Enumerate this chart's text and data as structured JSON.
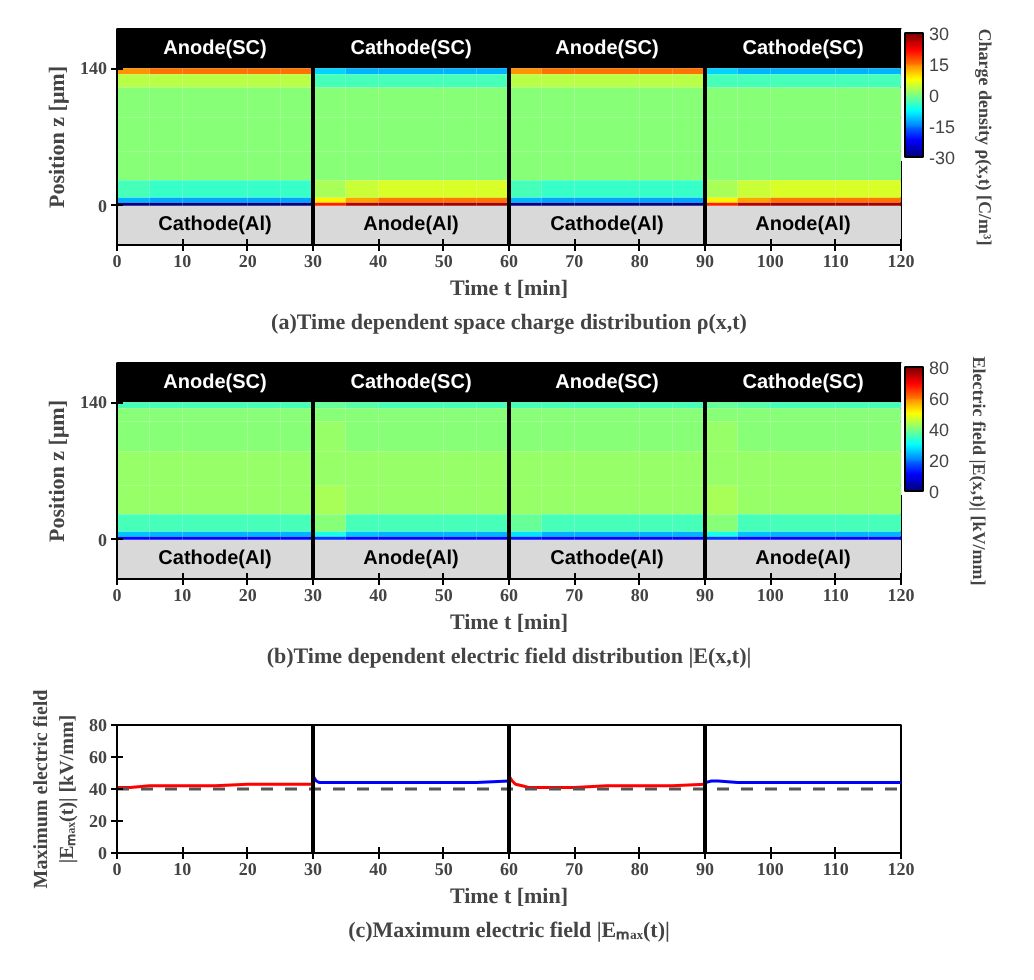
{
  "chart_data": [
    {
      "type": "heatmap",
      "title": "(a)Time dependent space charge distribution ρ(x,t)",
      "xlabel": "Time t [min]",
      "ylabel": "Position z [μm]",
      "clabel": "Charge density ρ(x,t) [C/m³]",
      "x": [
        2.5,
        7.5,
        12.5,
        17.5,
        22.5,
        27.5,
        32.5,
        37.5,
        42.5,
        47.5,
        52.5,
        57.5,
        62.5,
        67.5,
        72.5,
        77.5,
        82.5,
        87.5,
        92.5,
        97.5,
        102.5,
        107.5,
        112.5,
        117.5
      ],
      "y": [
        137,
        131,
        110,
        70,
        40,
        12,
        4.5,
        1.5
      ],
      "cells": [
        [
          14,
          15,
          15,
          15,
          15,
          15,
          -10,
          -12,
          -12,
          -12,
          -12,
          -12,
          14,
          15,
          15,
          15,
          15,
          15,
          -10,
          -12,
          -12,
          -12,
          -12,
          -12
        ],
        [
          3,
          3,
          3,
          3,
          3,
          3,
          -3,
          -3,
          -3,
          -3,
          -3,
          -3,
          3,
          3,
          3,
          3,
          3,
          3,
          -3,
          -3,
          -3,
          -3,
          -3,
          -3
        ],
        [
          0,
          0,
          0,
          0,
          0,
          0,
          0,
          0,
          0,
          0,
          0,
          0,
          0,
          0,
          0,
          0,
          0,
          0,
          0,
          0,
          0,
          0,
          0,
          0
        ],
        [
          0,
          0,
          0,
          0,
          0,
          0,
          0,
          0,
          0,
          0,
          0,
          0,
          0,
          0,
          0,
          0,
          0,
          0,
          0,
          0,
          0,
          0,
          0,
          0
        ],
        [
          0,
          0,
          0,
          0,
          0,
          0,
          0,
          0,
          0,
          0,
          0,
          0,
          0,
          0,
          0,
          0,
          0,
          0,
          0,
          0,
          0,
          0,
          0,
          0
        ],
        [
          -3,
          -4,
          -4,
          -4,
          -4,
          -4,
          2,
          4,
          5,
          5,
          5,
          5,
          -3,
          -4,
          -4,
          -4,
          -4,
          -4,
          2,
          4,
          5,
          5,
          5,
          5
        ],
        [
          -12,
          -13,
          -13,
          -13,
          -13,
          -13,
          8,
          13,
          15,
          15,
          15,
          15,
          -12,
          -13,
          -13,
          -13,
          -13,
          -13,
          8,
          13,
          15,
          15,
          15,
          15
        ],
        [
          -30,
          -30,
          -30,
          -30,
          -30,
          -30,
          20,
          27,
          28,
          28,
          28,
          28,
          -30,
          -30,
          -30,
          -30,
          -30,
          -30,
          20,
          27,
          28,
          28,
          28,
          28
        ]
      ],
      "clim": [
        -30,
        30
      ],
      "cticks": [
        -30,
        -15,
        0,
        15,
        30
      ],
      "xlim": [
        0,
        120
      ],
      "xticks": [
        0,
        10,
        20,
        30,
        40,
        50,
        60,
        70,
        80,
        90,
        100,
        110,
        120
      ],
      "ylim": [
        -40,
        180
      ],
      "yticks": [
        0,
        140
      ],
      "bands": [
        {
          "axis": "y",
          "from": 140,
          "to": 180,
          "label": null,
          "color": "#000000"
        },
        {
          "axis": "y",
          "from": -40,
          "to": 0,
          "label": null,
          "color": "#d9d9d9"
        }
      ],
      "ref_lines": [
        {
          "axis": "x",
          "value": 30,
          "label": null,
          "color": "#000000"
        },
        {
          "axis": "x",
          "value": 60,
          "label": null,
          "color": "#000000"
        },
        {
          "axis": "x",
          "value": 90,
          "label": null,
          "color": "#000000"
        }
      ],
      "annotations": [
        "Anode(SC)",
        "Cathode(SC)",
        "Anode(SC)",
        "Cathode(SC)",
        "Cathode(Al)",
        "Anode(Al)",
        "Cathode(Al)",
        "Anode(Al)"
      ]
    },
    {
      "type": "heatmap",
      "title": "(b)Time dependent electric field distribution |E(x,t)|",
      "xlabel": "Time t [min]",
      "ylabel": "Position z [μm]",
      "clabel": "Electric field |E(x,t)| [kV/mm]",
      "x": [
        2.5,
        7.5,
        12.5,
        17.5,
        22.5,
        27.5,
        32.5,
        37.5,
        42.5,
        47.5,
        52.5,
        57.5,
        62.5,
        67.5,
        72.5,
        77.5,
        82.5,
        87.5,
        92.5,
        97.5,
        102.5,
        107.5,
        112.5,
        117.5
      ],
      "y": [
        137,
        131,
        110,
        70,
        40,
        12,
        4.5,
        1.5
      ],
      "cells": [
        [
          36,
          36,
          36,
          36,
          36,
          36,
          38,
          37,
          36,
          36,
          36,
          36,
          36,
          36,
          36,
          36,
          36,
          36,
          38,
          37,
          36,
          36,
          36,
          36
        ],
        [
          40,
          40,
          40,
          40,
          40,
          40,
          41,
          40,
          40,
          40,
          40,
          40,
          40,
          40,
          40,
          40,
          40,
          40,
          41,
          40,
          40,
          40,
          40,
          40
        ],
        [
          41,
          41,
          41,
          41,
          41,
          41,
          42,
          41,
          41,
          41,
          41,
          41,
          41,
          41,
          41,
          41,
          41,
          41,
          42,
          41,
          41,
          41,
          41,
          41
        ],
        [
          42,
          42,
          42,
          42,
          42,
          42,
          42,
          42,
          42,
          42,
          42,
          42,
          42,
          42,
          42,
          42,
          42,
          42,
          42,
          42,
          42,
          42,
          42,
          42
        ],
        [
          42,
          42,
          42,
          42,
          42,
          42,
          43,
          42,
          42,
          42,
          42,
          42,
          42,
          42,
          42,
          42,
          42,
          42,
          43,
          42,
          42,
          42,
          42,
          42
        ],
        [
          36,
          35,
          35,
          35,
          35,
          35,
          40,
          36,
          35,
          35,
          35,
          35,
          38,
          35,
          35,
          35,
          35,
          35,
          40,
          36,
          35,
          35,
          35,
          35
        ],
        [
          25,
          24,
          24,
          24,
          24,
          24,
          32,
          26,
          24,
          24,
          24,
          24,
          28,
          24,
          24,
          24,
          24,
          24,
          32,
          26,
          24,
          24,
          24,
          24
        ],
        [
          10,
          10,
          10,
          10,
          10,
          10,
          14,
          11,
          10,
          10,
          10,
          10,
          12,
          10,
          10,
          10,
          10,
          10,
          14,
          11,
          10,
          10,
          10,
          10
        ]
      ],
      "clim": [
        0,
        80
      ],
      "cticks": [
        0,
        20,
        40,
        60,
        80
      ],
      "xlim": [
        0,
        120
      ],
      "xticks": [
        0,
        10,
        20,
        30,
        40,
        50,
        60,
        70,
        80,
        90,
        100,
        110,
        120
      ],
      "ylim": [
        -40,
        180
      ],
      "yticks": [
        0,
        140
      ],
      "bands": [
        {
          "axis": "y",
          "from": 140,
          "to": 180,
          "label": null,
          "color": "#000000"
        },
        {
          "axis": "y",
          "from": -40,
          "to": 0,
          "label": null,
          "color": "#d9d9d9"
        }
      ],
      "ref_lines": [
        {
          "axis": "x",
          "value": 30,
          "label": null,
          "color": "#000000"
        },
        {
          "axis": "x",
          "value": 60,
          "label": null,
          "color": "#000000"
        },
        {
          "axis": "x",
          "value": 90,
          "label": null,
          "color": "#000000"
        }
      ],
      "annotations": [
        "Anode(SC)",
        "Cathode(SC)",
        "Anode(SC)",
        "Cathode(SC)",
        "Cathode(Al)",
        "Anode(Al)",
        "Cathode(Al)",
        "Anode(Al)"
      ]
    },
    {
      "type": "line",
      "title": "(c)Maximum electric field |Eₘₐₓ(t)|",
      "xlabel": "Time t [min]",
      "ylabel": "Maximum electric field\n|Eₘₐₓ(t)| [kV/mm]",
      "series": [
        {
          "color": "#ff0000",
          "x": [
            0,
            2,
            5,
            10,
            15,
            20,
            25,
            30
          ],
          "values": [
            41,
            41,
            42,
            42,
            42,
            43,
            43,
            43
          ]
        },
        {
          "color": "#0000ff",
          "x": [
            30,
            30.5,
            31,
            33,
            35,
            40,
            45,
            50,
            55,
            60
          ],
          "values": [
            48,
            45,
            44,
            44,
            44,
            44,
            44,
            44,
            44,
            45
          ]
        },
        {
          "color": "#ff0000",
          "x": [
            60,
            60.5,
            61,
            62,
            63,
            65,
            70,
            75,
            80,
            85,
            90
          ],
          "values": [
            48,
            45,
            43,
            42,
            41,
            41,
            41,
            42,
            42,
            42,
            43
          ]
        },
        {
          "color": "#0000ff",
          "x": [
            90,
            91,
            92,
            95,
            100,
            105,
            110,
            115,
            120
          ],
          "values": [
            44,
            45,
            45,
            44,
            44,
            44,
            44,
            44,
            44
          ]
        }
      ],
      "xlim": [
        0,
        120
      ],
      "xticks": [
        0,
        10,
        20,
        30,
        40,
        50,
        60,
        70,
        80,
        90,
        100,
        110,
        120
      ],
      "ylim": [
        0,
        80
      ],
      "yticks": [
        0,
        20,
        40,
        60,
        80
      ],
      "ref_lines": [
        {
          "axis": "y",
          "value": 40,
          "label": null,
          "color": "#555555",
          "line_style": "dashed"
        },
        {
          "axis": "x",
          "value": 30,
          "label": null,
          "color": "#000000"
        },
        {
          "axis": "x",
          "value": 60,
          "label": null,
          "color": "#000000"
        },
        {
          "axis": "x",
          "value": 90,
          "label": null,
          "color": "#000000"
        }
      ]
    }
  ]
}
